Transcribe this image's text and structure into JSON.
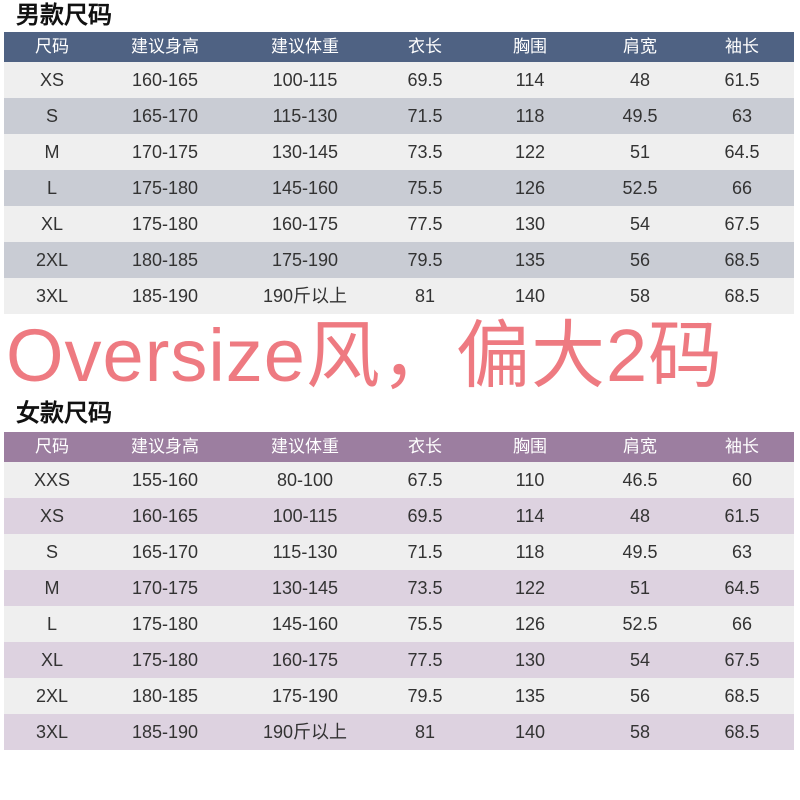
{
  "men": {
    "title": "男款尺码",
    "headers": [
      "尺码",
      "建议身高",
      "建议体重",
      "衣长",
      "胸围",
      "肩宽",
      "袖长"
    ],
    "rows": [
      [
        "XS",
        "160-165",
        "100-115",
        "69.5",
        "114",
        "48",
        "61.5"
      ],
      [
        "S",
        "165-170",
        "115-130",
        "71.5",
        "118",
        "49.5",
        "63"
      ],
      [
        "M",
        "170-175",
        "130-145",
        "73.5",
        "122",
        "51",
        "64.5"
      ],
      [
        "L",
        "175-180",
        "145-160",
        "75.5",
        "126",
        "52.5",
        "66"
      ],
      [
        "XL",
        "175-180",
        "160-175",
        "77.5",
        "130",
        "54",
        "67.5"
      ],
      [
        "2XL",
        "180-185",
        "175-190",
        "79.5",
        "135",
        "56",
        "68.5"
      ],
      [
        "3XL",
        "185-190",
        "190斤以上",
        "81",
        "140",
        "58",
        "68.5"
      ]
    ],
    "header_color": "#4f6283"
  },
  "women": {
    "title": "女款尺码",
    "headers": [
      "尺码",
      "建议身高",
      "建议体重",
      "衣长",
      "胸围",
      "肩宽",
      "袖长"
    ],
    "rows": [
      [
        "XXS",
        "155-160",
        "80-100",
        "67.5",
        "110",
        "46.5",
        "60"
      ],
      [
        "XS",
        "160-165",
        "100-115",
        "69.5",
        "114",
        "48",
        "61.5"
      ],
      [
        "S",
        "165-170",
        "115-130",
        "71.5",
        "118",
        "49.5",
        "63"
      ],
      [
        "M",
        "170-175",
        "130-145",
        "73.5",
        "122",
        "51",
        "64.5"
      ],
      [
        "L",
        "175-180",
        "145-160",
        "75.5",
        "126",
        "52.5",
        "66"
      ],
      [
        "XL",
        "175-180",
        "160-175",
        "77.5",
        "130",
        "54",
        "67.5"
      ],
      [
        "2XL",
        "180-185",
        "175-190",
        "79.5",
        "135",
        "56",
        "68.5"
      ],
      [
        "3XL",
        "185-190",
        "190斤以上",
        "81",
        "140",
        "58",
        "68.5"
      ]
    ],
    "header_color": "#9c7ea0"
  },
  "watermark": "Oversize风，偏大2码"
}
